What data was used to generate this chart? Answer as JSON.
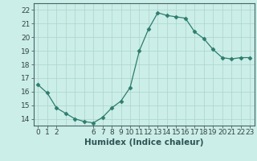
{
  "x": [
    0,
    1,
    2,
    3,
    4,
    5,
    6,
    7,
    8,
    9,
    10,
    11,
    12,
    13,
    14,
    15,
    16,
    17,
    18,
    19,
    20,
    21,
    22,
    23
  ],
  "y": [
    16.5,
    15.9,
    14.8,
    14.4,
    14.0,
    13.8,
    13.7,
    14.1,
    14.8,
    15.3,
    16.3,
    19.0,
    20.6,
    21.8,
    21.6,
    21.5,
    21.4,
    20.4,
    19.9,
    19.1,
    18.5,
    18.4,
    18.5,
    18.5
  ],
  "line_color": "#2d7d6e",
  "marker": "D",
  "marker_size": 2.5,
  "bg_color": "#cceee8",
  "grid_color": "#aad4cc",
  "ylim": [
    13.5,
    22.5
  ],
  "yticks": [
    14,
    15,
    16,
    17,
    18,
    19,
    20,
    21,
    22
  ],
  "xticks": [
    0,
    1,
    2,
    6,
    7,
    8,
    9,
    10,
    11,
    12,
    13,
    14,
    15,
    16,
    17,
    18,
    19,
    20,
    21,
    22,
    23
  ],
  "xlabel": "Humidex (Indice chaleur)",
  "xlabel_fontsize": 7.5,
  "tick_fontsize": 6.5,
  "title": ""
}
